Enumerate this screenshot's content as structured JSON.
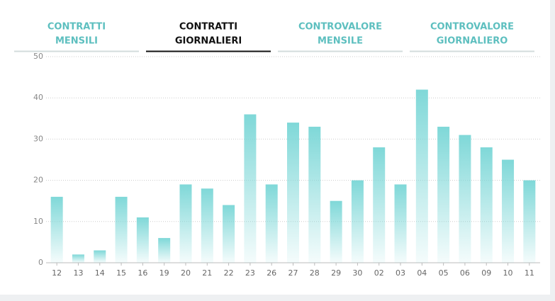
{
  "tabs": [
    {
      "lines": [
        "CONTRATTI",
        "MENSILI"
      ]
    },
    {
      "lines": [
        "CONTRATTI",
        "GIORNALIERI"
      ]
    },
    {
      "lines": [
        "CONTROVALORE",
        "MENSILE"
      ]
    },
    {
      "lines": [
        "CONTROVALORE",
        "GIORNALIERO"
      ]
    }
  ],
  "active_tab": 1,
  "chart_data": {
    "type": "bar",
    "categories": [
      "12",
      "13",
      "14",
      "15",
      "16",
      "19",
      "20",
      "21",
      "22",
      "23",
      "26",
      "27",
      "28",
      "29",
      "30",
      "02",
      "03",
      "04",
      "05",
      "06",
      "09",
      "10",
      "11"
    ],
    "values": [
      16,
      2,
      3,
      16,
      11,
      6,
      19,
      18,
      14,
      36,
      19,
      34,
      33,
      15,
      20,
      28,
      19,
      42,
      33,
      31,
      28,
      25,
      20
    ],
    "color": "#7fd8d8",
    "ylim": [
      0,
      50
    ],
    "yticks": [
      0,
      10,
      20,
      30,
      40,
      50
    ],
    "grid": true
  }
}
